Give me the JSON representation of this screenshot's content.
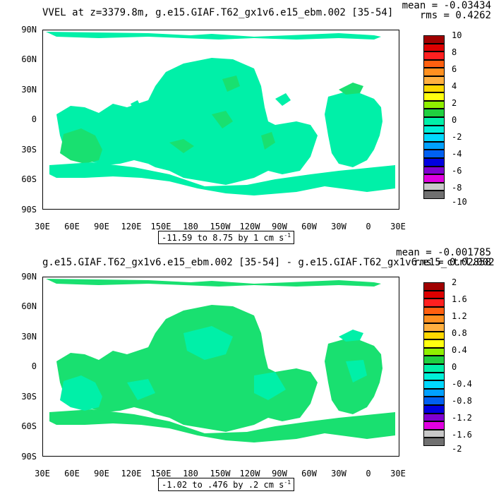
{
  "panels": [
    {
      "title": "VVEL at z=3379.8m, g.e15.GIAF.T62_gx1v6.e15_ebm.002 [35-54]",
      "mean_label": "mean = -0.03434",
      "rms_label": "rms = 0.4262",
      "range_label": "-11.59 to 8.75 by 1 cm s",
      "range_unit_exp": "-1",
      "colorbar_labels": [
        "10",
        "8",
        "6",
        "4",
        "2",
        "0",
        "-2",
        "-4",
        "-6",
        "-8",
        "-10"
      ]
    },
    {
      "title": "g.e15.GIAF.T62_gx1v6.e15_ebm.002 [35-54] - g.e15.GIAF.T62_gx1v6.e15_ctrl.002",
      "mean_label": "mean = -0.001785",
      "rms_label": "rms = 0.02858",
      "range_label": "-1.02 to .476 by .2 cm s",
      "range_unit_exp": "-1",
      "colorbar_labels": [
        "2",
        "1.6",
        "1.2",
        "0.8",
        "0.4",
        "0",
        "-0.4",
        "-0.8",
        "-1.2",
        "-1.6",
        "-2"
      ]
    }
  ],
  "axes": {
    "lat_labels": [
      "90N",
      "60N",
      "30N",
      "0",
      "30S",
      "60S",
      "90S"
    ],
    "lon_labels": [
      "30E",
      "60E",
      "90E",
      "120E",
      "150E",
      "180",
      "150W",
      "120W",
      "90W",
      "60W",
      "30W",
      "0",
      "30E"
    ]
  },
  "colors": {
    "ocean_main": "#00f0a8",
    "ocean_alt": "#19e070",
    "land": "#ffffff",
    "colorbar": [
      "#a00000",
      "#dd0000",
      "#ff2020",
      "#ff6010",
      "#ff9020",
      "#ffb040",
      "#ffd800",
      "#ffff10",
      "#90f000",
      "#20d040",
      "#00f0a8",
      "#00f0d8",
      "#00d8ff",
      "#00a0ff",
      "#0060f0",
      "#0000e0",
      "#8000d0",
      "#e000e0",
      "#c8c8c8",
      "#707070"
    ]
  }
}
